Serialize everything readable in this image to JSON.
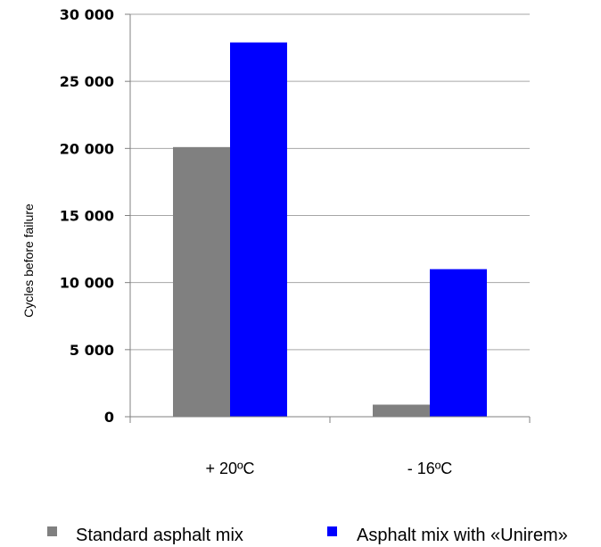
{
  "chart_data": {
    "type": "bar",
    "title": "",
    "xlabel": "",
    "ylabel": "Cycles before failure",
    "categories": [
      "+ 20ºC",
      "- 16ºC"
    ],
    "series": [
      {
        "name": "Standard asphalt mix",
        "color": "#808080",
        "values": [
          20100,
          900
        ]
      },
      {
        "name": "Asphalt mix with «Unirem»",
        "color": "#0000ff",
        "values": [
          27900,
          11000
        ]
      }
    ],
    "ylim": [
      0,
      30000
    ],
    "yticks": [
      0,
      5000,
      10000,
      15000,
      20000,
      25000,
      30000
    ],
    "ytick_labels": [
      "0",
      "5 000",
      "10 000",
      "15 000",
      "20 000",
      "25 000",
      "30 000"
    ],
    "grid": true,
    "legend_position": "bottom"
  }
}
